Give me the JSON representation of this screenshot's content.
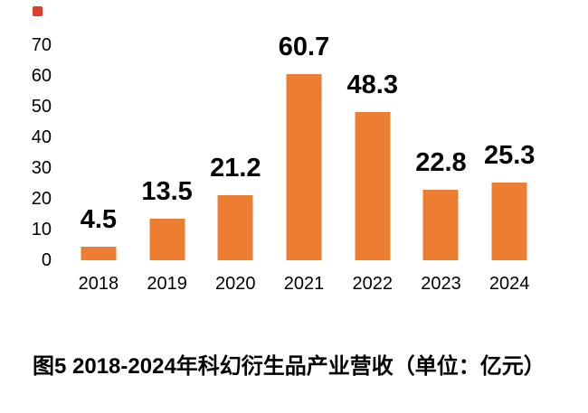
{
  "figure": {
    "caption": "图5 2018-2024年科幻衍生品产业营收（单位：亿元）"
  },
  "colors": {
    "bar_orange": "#ED7D31",
    "marker_red": "#DF3E2B",
    "text": "#000000",
    "background": "#FFFFFF"
  },
  "chart_data": {
    "type": "bar",
    "title": "图5 2018-2024年科幻衍生品产业营收（单位：亿元）",
    "categories": [
      "2018",
      "2019",
      "2020",
      "2021",
      "2022",
      "2023",
      "2024"
    ],
    "values": [
      4.5,
      13.5,
      21.2,
      60.7,
      48.3,
      22.8,
      25.3
    ],
    "value_labels": [
      "4.5",
      "13.5",
      "21.2",
      "60.7",
      "48.3",
      "22.8",
      "25.3"
    ],
    "bar_color": "#ED7D31",
    "xlabel": "",
    "ylabel": "",
    "unit": "亿元",
    "ylim": [
      0,
      70
    ],
    "yticks": [
      0,
      10,
      20,
      30,
      40,
      50,
      60,
      70
    ],
    "grid": false,
    "legend": "none",
    "value_label_position": "above-bars",
    "caption_position": "below-chart"
  }
}
